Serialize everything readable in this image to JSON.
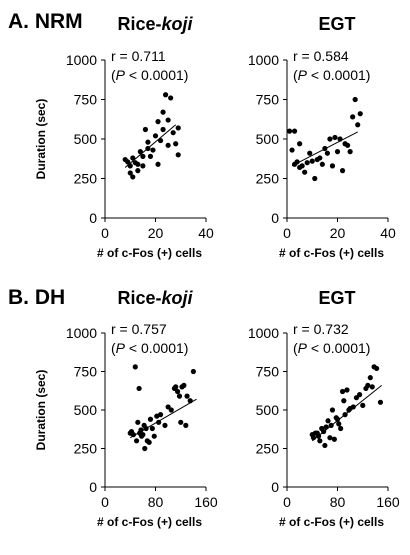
{
  "sections": [
    {
      "label": "A. NRM"
    },
    {
      "label": "B. DH"
    }
  ],
  "chart_data": [
    {
      "type": "scatter",
      "section": "A. NRM",
      "title": "Rice-koji",
      "title_plain": "Rice-",
      "title_italic": "koji",
      "xlabel": "# of c-Fos (+) cells",
      "ylabel": "Duration (sec)",
      "xlim": [
        0,
        40
      ],
      "xticks": [
        0,
        20,
        40
      ],
      "ylim": [
        0,
        1000
      ],
      "yticks": [
        0,
        250,
        500,
        750,
        1000
      ],
      "stats": {
        "r": "r = 0.711",
        "p": "P < 0.0001"
      },
      "fit_line": [
        [
          8,
          320
        ],
        [
          28,
          590
        ]
      ],
      "points": [
        [
          8,
          370
        ],
        [
          9,
          355
        ],
        [
          10,
          330
        ],
        [
          10,
          285
        ],
        [
          11,
          380
        ],
        [
          11,
          260
        ],
        [
          12,
          350
        ],
        [
          13,
          340
        ],
        [
          13,
          300
        ],
        [
          14,
          420
        ],
        [
          15,
          390
        ],
        [
          15,
          330
        ],
        [
          16,
          560
        ],
        [
          17,
          480
        ],
        [
          17,
          440
        ],
        [
          18,
          390
        ],
        [
          19,
          430
        ],
        [
          20,
          520
        ],
        [
          21,
          610
        ],
        [
          21,
          340
        ],
        [
          22,
          490
        ],
        [
          23,
          670
        ],
        [
          23,
          560
        ],
        [
          24,
          780
        ],
        [
          25,
          620
        ],
        [
          25,
          460
        ],
        [
          26,
          760
        ],
        [
          27,
          540
        ],
        [
          28,
          470
        ],
        [
          29,
          570
        ],
        [
          29,
          400
        ]
      ]
    },
    {
      "type": "scatter",
      "section": "A. NRM",
      "title": "EGT",
      "title_plain": "EGT",
      "title_italic": "",
      "xlabel": "# of c-Fos (+) cells",
      "ylabel": "",
      "xlim": [
        0,
        40
      ],
      "xticks": [
        0,
        20,
        40
      ],
      "ylim": [
        0,
        1000
      ],
      "yticks": [
        0,
        250,
        500,
        750,
        1000
      ],
      "stats": {
        "r": "r = 0.584",
        "p": "P < 0.0001"
      },
      "fit_line": [
        [
          2,
          330
        ],
        [
          28,
          545
        ]
      ],
      "points": [
        [
          1,
          550
        ],
        [
          2,
          430
        ],
        [
          3,
          340
        ],
        [
          3,
          550
        ],
        [
          4,
          355
        ],
        [
          5,
          470
        ],
        [
          5,
          320
        ],
        [
          6,
          330
        ],
        [
          7,
          290
        ],
        [
          8,
          350
        ],
        [
          9,
          410
        ],
        [
          10,
          360
        ],
        [
          11,
          250
        ],
        [
          12,
          370
        ],
        [
          13,
          380
        ],
        [
          14,
          340
        ],
        [
          15,
          440
        ],
        [
          16,
          410
        ],
        [
          17,
          500
        ],
        [
          18,
          330
        ],
        [
          19,
          510
        ],
        [
          20,
          420
        ],
        [
          21,
          500
        ],
        [
          22,
          300
        ],
        [
          23,
          470
        ],
        [
          24,
          460
        ],
        [
          25,
          420
        ],
        [
          26,
          640
        ],
        [
          27,
          750
        ],
        [
          28,
          590
        ],
        [
          29,
          660
        ]
      ]
    },
    {
      "type": "scatter",
      "section": "B. DH",
      "title": "Rice-koji",
      "title_plain": "Rice-",
      "title_italic": "koji",
      "xlabel": "# of c-Fos (+) cells",
      "ylabel": "Duration (sec)",
      "xlim": [
        0,
        160
      ],
      "xticks": [
        0,
        80,
        160
      ],
      "ylim": [
        0,
        1000
      ],
      "yticks": [
        0,
        250,
        500,
        750,
        1000
      ],
      "stats": {
        "r": "r = 0.757",
        "p": "P < 0.0001"
      },
      "fit_line": [
        [
          40,
          320
        ],
        [
          145,
          570
        ]
      ],
      "points": [
        [
          40,
          350
        ],
        [
          42,
          360
        ],
        [
          45,
          340
        ],
        [
          48,
          780
        ],
        [
          50,
          300
        ],
        [
          52,
          420
        ],
        [
          54,
          640
        ],
        [
          55,
          350
        ],
        [
          57,
          370
        ],
        [
          58,
          330
        ],
        [
          60,
          340
        ],
        [
          62,
          400
        ],
        [
          63,
          250
        ],
        [
          65,
          380
        ],
        [
          67,
          300
        ],
        [
          70,
          290
        ],
        [
          72,
          440
        ],
        [
          75,
          380
        ],
        [
          78,
          330
        ],
        [
          82,
          460
        ],
        [
          85,
          420
        ],
        [
          88,
          470
        ],
        [
          95,
          400
        ],
        [
          100,
          520
        ],
        [
          105,
          500
        ],
        [
          110,
          640
        ],
        [
          112,
          650
        ],
        [
          115,
          620
        ],
        [
          118,
          590
        ],
        [
          120,
          420
        ],
        [
          122,
          650
        ],
        [
          125,
          660
        ],
        [
          128,
          400
        ],
        [
          130,
          590
        ],
        [
          135,
          560
        ],
        [
          140,
          750
        ]
      ]
    },
    {
      "type": "scatter",
      "section": "B. DH",
      "title": "EGT",
      "title_plain": "EGT",
      "title_italic": "",
      "xlabel": "# of c-Fos (+) cells",
      "ylabel": "",
      "xlim": [
        0,
        160
      ],
      "xticks": [
        0,
        80,
        160
      ],
      "ylim": [
        0,
        1000
      ],
      "yticks": [
        0,
        250,
        500,
        750,
        1000
      ],
      "stats": {
        "r": "r = 0.732",
        "p": "P < 0.0001"
      },
      "fit_line": [
        [
          40,
          300
        ],
        [
          150,
          660
        ]
      ],
      "points": [
        [
          40,
          340
        ],
        [
          42,
          320
        ],
        [
          45,
          350
        ],
        [
          48,
          350
        ],
        [
          50,
          330
        ],
        [
          52,
          300
        ],
        [
          55,
          380
        ],
        [
          58,
          360
        ],
        [
          60,
          270
        ],
        [
          62,
          390
        ],
        [
          65,
          430
        ],
        [
          68,
          320
        ],
        [
          70,
          400
        ],
        [
          72,
          500
        ],
        [
          75,
          310
        ],
        [
          78,
          450
        ],
        [
          80,
          440
        ],
        [
          82,
          410
        ],
        [
          85,
          380
        ],
        [
          88,
          620
        ],
        [
          90,
          560
        ],
        [
          92,
          470
        ],
        [
          95,
          630
        ],
        [
          98,
          500
        ],
        [
          100,
          510
        ],
        [
          105,
          520
        ],
        [
          110,
          580
        ],
        [
          115,
          600
        ],
        [
          120,
          530
        ],
        [
          125,
          640
        ],
        [
          128,
          660
        ],
        [
          132,
          710
        ],
        [
          135,
          650
        ],
        [
          138,
          780
        ],
        [
          142,
          770
        ],
        [
          148,
          550
        ]
      ]
    }
  ]
}
